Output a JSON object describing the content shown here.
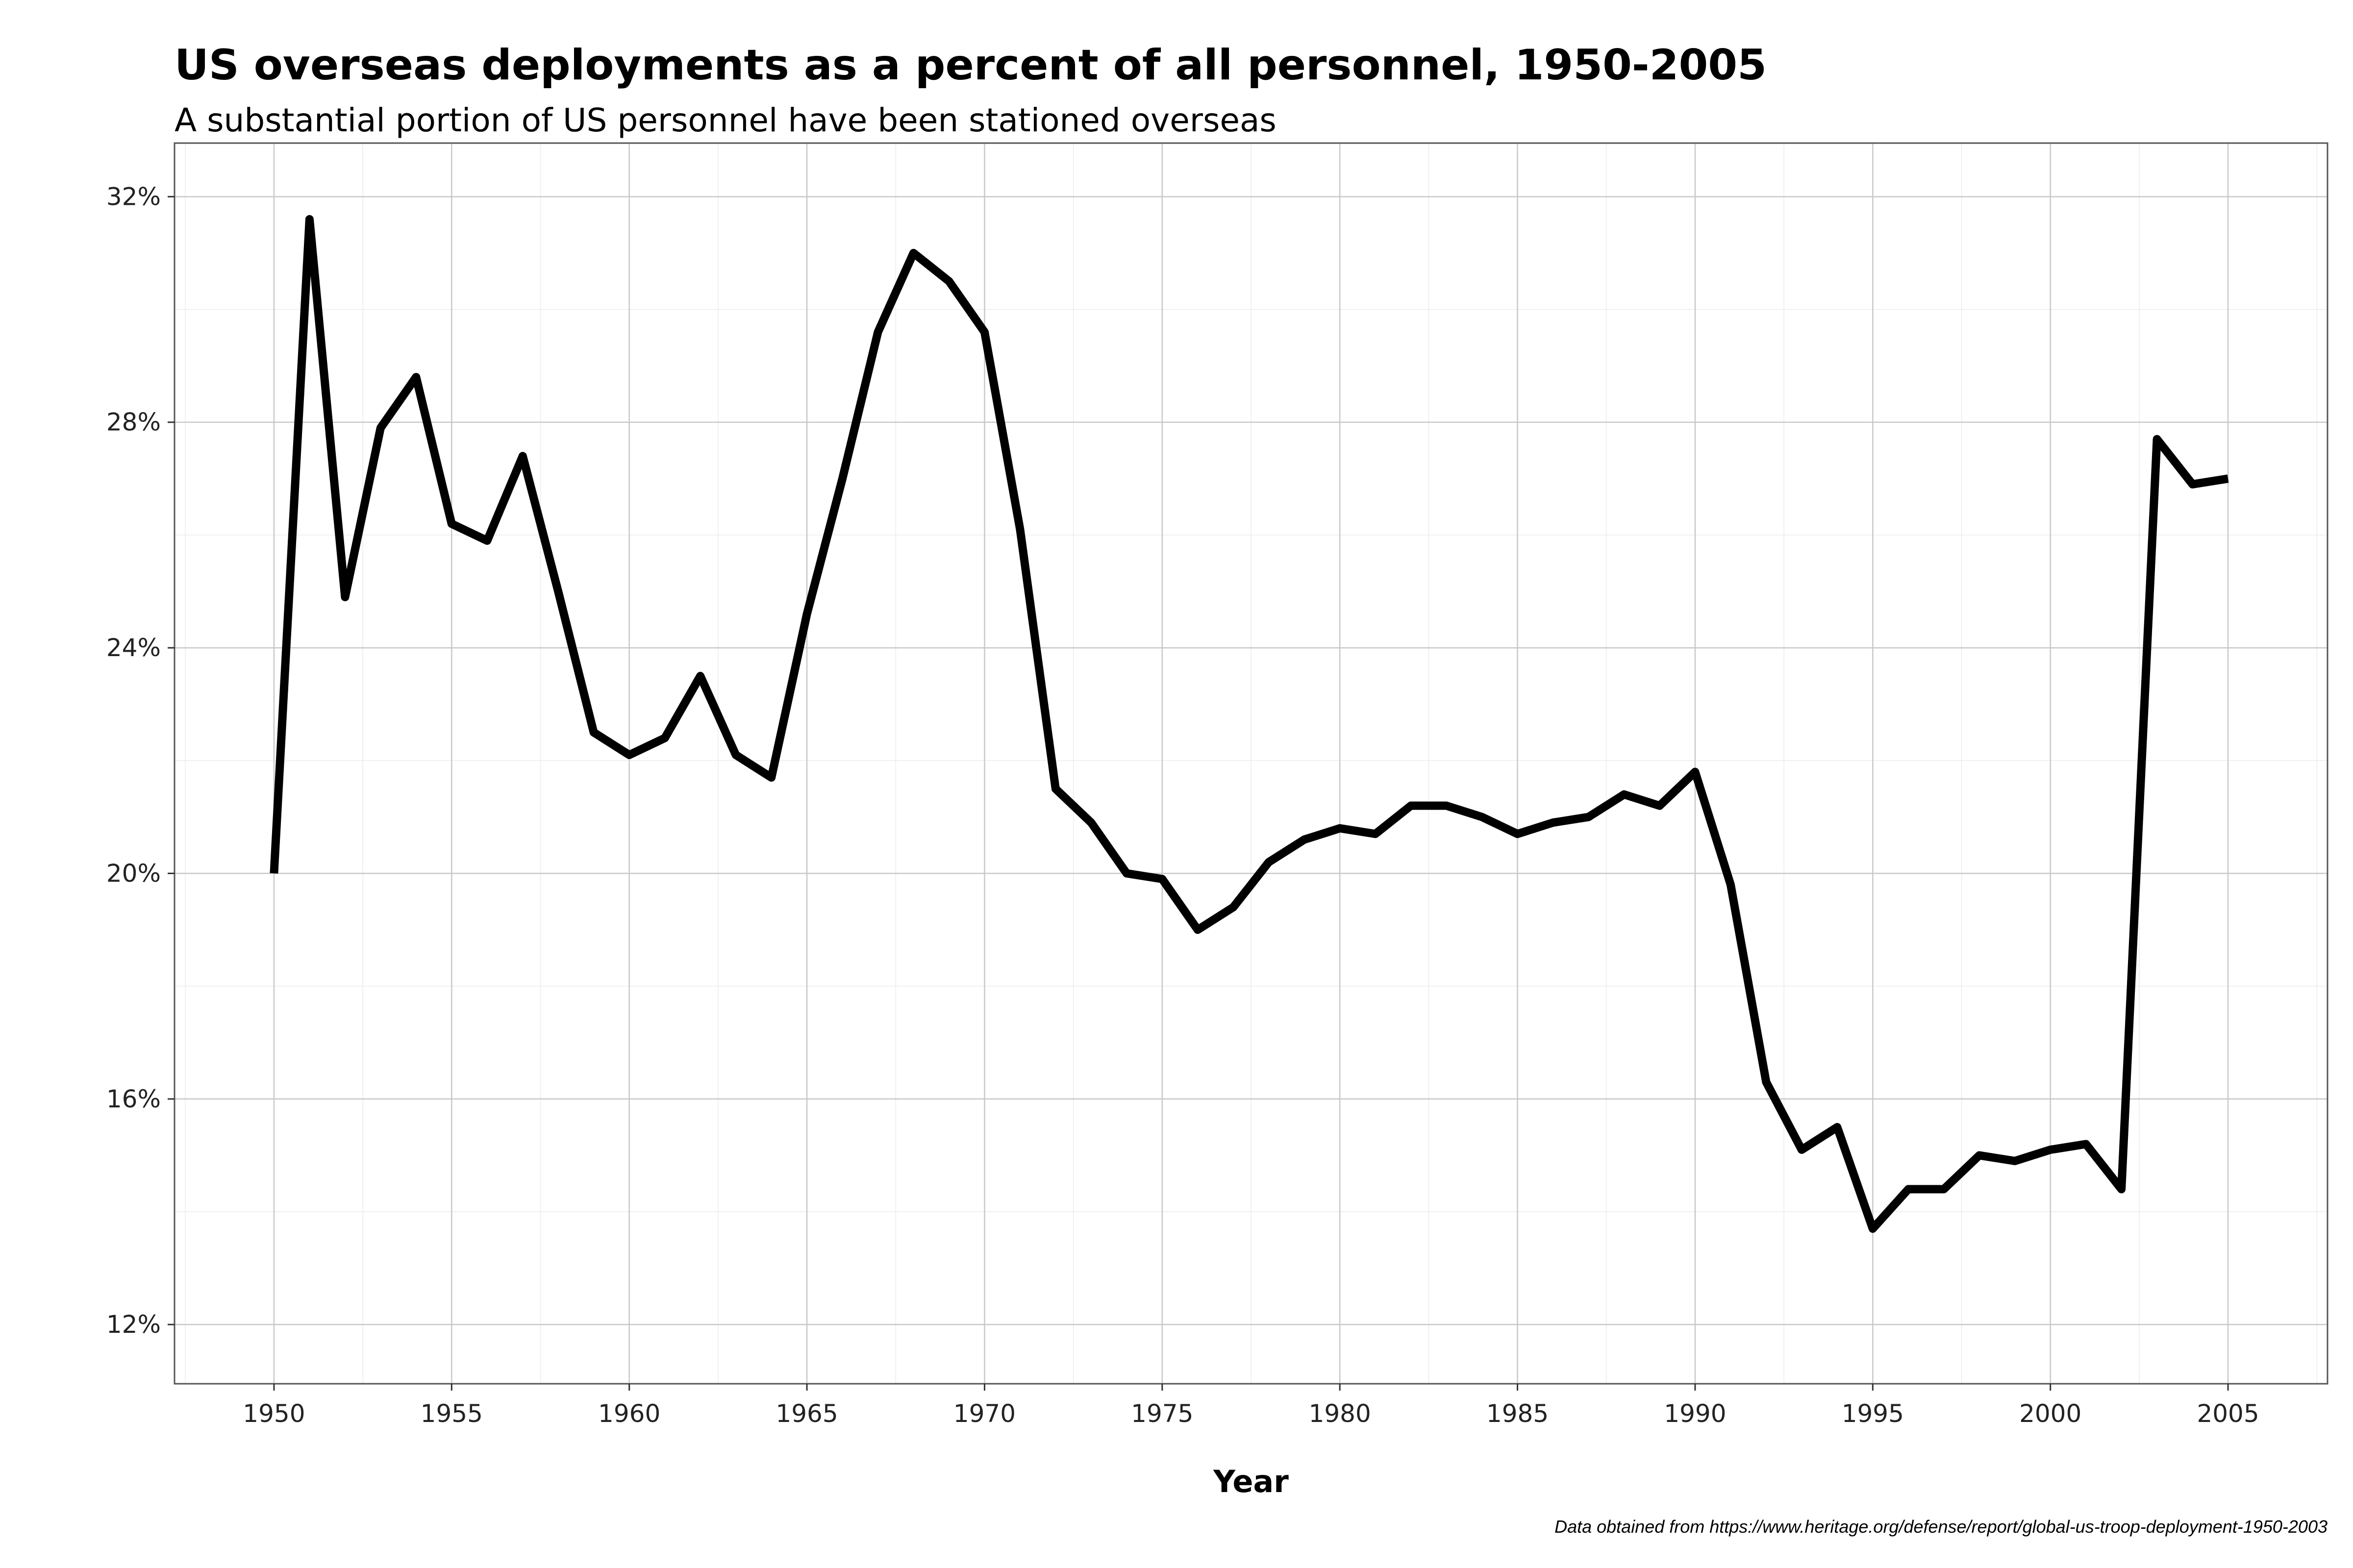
{
  "chart_data": {
    "type": "line",
    "title": "US overseas deployments as a percent of all personnel, 1950-2005",
    "subtitle": "A substantial portion of US personnel have been stationed overseas",
    "xlabel": "Year",
    "ylabel": "",
    "caption": "Data obtained from https://www.heritage.org/defense/report/global-us-troop-deployment-1950-2003",
    "xlim": [
      1947.2,
      2007.8
    ],
    "ylim": [
      10.95,
      32.95
    ],
    "x_ticks": [
      1950,
      1955,
      1960,
      1965,
      1970,
      1975,
      1980,
      1985,
      1990,
      1995,
      2000,
      2005
    ],
    "y_ticks": [
      12,
      16,
      20,
      24,
      28,
      32
    ],
    "y_tick_labels": [
      "12%",
      "16%",
      "20%",
      "24%",
      "28%",
      "32%"
    ],
    "x_tick_labels": [
      "1950",
      "1955",
      "1960",
      "1965",
      "1970",
      "1975",
      "1980",
      "1985",
      "1990",
      "1995",
      "2000",
      "2005"
    ],
    "grid": true,
    "legend": "none",
    "line_color": "#000000",
    "series": [
      {
        "x": [
          1950,
          1951,
          1952,
          1953,
          1954,
          1955,
          1956,
          1957,
          1958,
          1959,
          1960,
          1961,
          1962,
          1963,
          1964,
          1965,
          1966,
          1967,
          1968,
          1969,
          1970,
          1971,
          1972,
          1973,
          1974,
          1975,
          1976,
          1977,
          1978,
          1979,
          1980,
          1981,
          1982,
          1983,
          1984,
          1985,
          1986,
          1987,
          1988,
          1989,
          1990,
          1991,
          1992,
          1993,
          1994,
          1995,
          1996,
          1997,
          1998,
          1999,
          2000,
          2001,
          2002,
          2003,
          2004,
          2005
        ],
        "values": [
          20.0,
          31.6,
          24.9,
          27.9,
          28.8,
          26.2,
          25.9,
          27.4,
          25.0,
          22.5,
          22.1,
          22.4,
          23.5,
          22.1,
          21.7,
          24.6,
          27.0,
          29.6,
          31.0,
          30.5,
          29.6,
          26.1,
          21.5,
          20.9,
          20.0,
          19.9,
          19.0,
          19.4,
          20.2,
          20.6,
          20.8,
          20.7,
          21.2,
          21.2,
          21.0,
          20.7,
          20.9,
          21.0,
          21.4,
          21.2,
          21.8,
          19.8,
          16.3,
          15.1,
          15.5,
          13.7,
          14.4,
          14.4,
          15.0,
          14.9,
          15.1,
          15.2,
          14.4,
          27.7,
          26.9,
          27.0
        ]
      }
    ]
  }
}
